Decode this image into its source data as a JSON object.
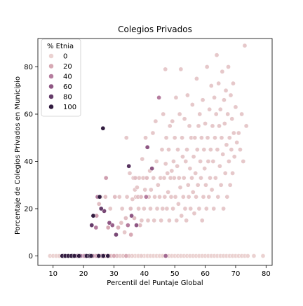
{
  "chart_data": {
    "type": "scatter",
    "title": "Colegios Privados",
    "xlabel": "Percentil del Puntaje Global",
    "ylabel": "Porcentaje de Colegios Privados en Municipio",
    "xlim": [
      5,
      82
    ],
    "ylim": [
      -4,
      92
    ],
    "xticks": [
      10,
      20,
      30,
      40,
      50,
      60,
      70,
      80
    ],
    "yticks": [
      0,
      20,
      40,
      60,
      80
    ],
    "grid": false,
    "legend": {
      "title": "% Etnia",
      "placement": "top-left",
      "entries": [
        {
          "label": "0",
          "value": 0
        },
        {
          "label": "20",
          "value": 20
        },
        {
          "label": "40",
          "value": 40
        },
        {
          "label": "60",
          "value": 60
        },
        {
          "label": "80",
          "value": 80
        },
        {
          "label": "100",
          "value": 100
        }
      ]
    },
    "hue_colors": [
      "#ebd2d1",
      "#d7a9b4",
      "#b57c9e",
      "#8e5683",
      "#643b69",
      "#311b3f"
    ],
    "points": [
      [
        9,
        0,
        0
      ],
      [
        10,
        0,
        0
      ],
      [
        11,
        0,
        0
      ],
      [
        12,
        0,
        2
      ],
      [
        13,
        0,
        100
      ],
      [
        13.5,
        0,
        90
      ],
      [
        14,
        0,
        100
      ],
      [
        15,
        0,
        100
      ],
      [
        16,
        0,
        100
      ],
      [
        16.5,
        0,
        95
      ],
      [
        17,
        0,
        100
      ],
      [
        18,
        0,
        60
      ],
      [
        18.5,
        0,
        100
      ],
      [
        19,
        0,
        55
      ],
      [
        20,
        0,
        30
      ],
      [
        20.5,
        0,
        40
      ],
      [
        21,
        0,
        100
      ],
      [
        21.5,
        0,
        30
      ],
      [
        22,
        0,
        100
      ],
      [
        22.5,
        0,
        100
      ],
      [
        23,
        0,
        35
      ],
      [
        24,
        0,
        25
      ],
      [
        24.5,
        0,
        30
      ],
      [
        25,
        0,
        100
      ],
      [
        26,
        0,
        40
      ],
      [
        26.5,
        0,
        100
      ],
      [
        27,
        0,
        25
      ],
      [
        28,
        0,
        100
      ],
      [
        28.5,
        0,
        20
      ],
      [
        29,
        0,
        15
      ],
      [
        30,
        0,
        20
      ],
      [
        31,
        0,
        10
      ],
      [
        32,
        0,
        5
      ],
      [
        33,
        0,
        5
      ],
      [
        34,
        0,
        20
      ],
      [
        35,
        0,
        5
      ],
      [
        36,
        0,
        2
      ],
      [
        37,
        0,
        0
      ],
      [
        38,
        0,
        0
      ],
      [
        39,
        0,
        2
      ],
      [
        40,
        0,
        0
      ],
      [
        41,
        0,
        0
      ],
      [
        42,
        0,
        0
      ],
      [
        43,
        0,
        0
      ],
      [
        44,
        0,
        0
      ],
      [
        45,
        0,
        0
      ],
      [
        46,
        0,
        0
      ],
      [
        47,
        0,
        50
      ],
      [
        48,
        0,
        0
      ],
      [
        49,
        0,
        0
      ],
      [
        50,
        0,
        0
      ],
      [
        51,
        0,
        0
      ],
      [
        52,
        0,
        0
      ],
      [
        53,
        0,
        0
      ],
      [
        54,
        0,
        0
      ],
      [
        55,
        0,
        0
      ],
      [
        56,
        0,
        0
      ],
      [
        57,
        0,
        0
      ],
      [
        58,
        0,
        0
      ],
      [
        59,
        0,
        0
      ],
      [
        60,
        0,
        0
      ],
      [
        61,
        0,
        0
      ],
      [
        62,
        0,
        0
      ],
      [
        63,
        0,
        0
      ],
      [
        64,
        0,
        0
      ],
      [
        65,
        0,
        0
      ],
      [
        66,
        0,
        0
      ],
      [
        67,
        0,
        0
      ],
      [
        68,
        0,
        0
      ],
      [
        69,
        0,
        0
      ],
      [
        70,
        0,
        0
      ],
      [
        71,
        0,
        0
      ],
      [
        72,
        0,
        0
      ],
      [
        73,
        0,
        0
      ],
      [
        74,
        0,
        0
      ],
      [
        76,
        0,
        0
      ],
      [
        79,
        0,
        0
      ],
      [
        24.6,
        25,
        40
      ],
      [
        25.3,
        25,
        100
      ],
      [
        25.8,
        20,
        80
      ],
      [
        26.4,
        54,
        100
      ],
      [
        23.2,
        17,
        100
      ],
      [
        22.7,
        13,
        80
      ],
      [
        24.1,
        12,
        40
      ],
      [
        26.8,
        19,
        70
      ],
      [
        28.5,
        14,
        60
      ],
      [
        29.5,
        13,
        55
      ],
      [
        30.7,
        9,
        70
      ],
      [
        24.3,
        17,
        25
      ],
      [
        25.1,
        22,
        10
      ],
      [
        25.6,
        25,
        5
      ],
      [
        27.2,
        25,
        10
      ],
      [
        27.4,
        33,
        25
      ],
      [
        28.1,
        12,
        20
      ],
      [
        28.8,
        20,
        5
      ],
      [
        30.3,
        25,
        10
      ],
      [
        31.4,
        12,
        15
      ],
      [
        31.8,
        25,
        5
      ],
      [
        32.4,
        14,
        8
      ],
      [
        32.7,
        20,
        5
      ],
      [
        33.5,
        10,
        5
      ],
      [
        33.9,
        16,
        10
      ],
      [
        34.1,
        50,
        5
      ],
      [
        34.3,
        25,
        5
      ],
      [
        34.6,
        13,
        40
      ],
      [
        34.9,
        38,
        85
      ],
      [
        35.2,
        35,
        5
      ],
      [
        35.5,
        20,
        10
      ],
      [
        35.6,
        9,
        20
      ],
      [
        35.8,
        17,
        60
      ],
      [
        36.1,
        24,
        5
      ],
      [
        36.4,
        33,
        5
      ],
      [
        36.7,
        16,
        10
      ],
      [
        36.9,
        28,
        5
      ],
      [
        37.0,
        33,
        10
      ],
      [
        37.2,
        25,
        5
      ],
      [
        37.4,
        13,
        60
      ],
      [
        37.6,
        29,
        5
      ],
      [
        37.9,
        25,
        10
      ],
      [
        38.1,
        20,
        5
      ],
      [
        38.3,
        33,
        5
      ],
      [
        38.6,
        13,
        10
      ],
      [
        38.9,
        25,
        10
      ],
      [
        39.1,
        15,
        5
      ],
      [
        39.3,
        41,
        5
      ],
      [
        39.6,
        33,
        5
      ],
      [
        39.9,
        20,
        5
      ],
      [
        40.2,
        28,
        5
      ],
      [
        40.4,
        50,
        5
      ],
      [
        40.6,
        25,
        40
      ],
      [
        40.8,
        33,
        10
      ],
      [
        41.0,
        46,
        60
      ],
      [
        41.2,
        15,
        5
      ],
      [
        41.5,
        25,
        5
      ],
      [
        41.8,
        36,
        5
      ],
      [
        42.0,
        20,
        5
      ],
      [
        42.2,
        28,
        5
      ],
      [
        42.5,
        37,
        60
      ],
      [
        42.8,
        52,
        5
      ],
      [
        43.0,
        33,
        5
      ],
      [
        43.2,
        15,
        5
      ],
      [
        43.4,
        25,
        5
      ],
      [
        43.7,
        57,
        5
      ],
      [
        44.0,
        40,
        5
      ],
      [
        44.2,
        20,
        5
      ],
      [
        44.5,
        30,
        5
      ],
      [
        44.8,
        67,
        40
      ],
      [
        45.0,
        25,
        5
      ],
      [
        45.3,
        33,
        5
      ],
      [
        45.5,
        15,
        5
      ],
      [
        45.8,
        45,
        5
      ],
      [
        46.0,
        20,
        5
      ],
      [
        46.2,
        60,
        5
      ],
      [
        46.5,
        33,
        5
      ],
      [
        46.7,
        25,
        5
      ],
      [
        46.9,
        79,
        5
      ],
      [
        47.0,
        39,
        5
      ],
      [
        47.2,
        50,
        5
      ],
      [
        47.4,
        20,
        5
      ],
      [
        47.6,
        35,
        5
      ],
      [
        47.8,
        27,
        5
      ],
      [
        48.0,
        45,
        5
      ],
      [
        48.2,
        15,
        5
      ],
      [
        48.4,
        55,
        5
      ],
      [
        48.6,
        33,
        5
      ],
      [
        48.8,
        25,
        5
      ],
      [
        49.0,
        36,
        5
      ],
      [
        49.2,
        57,
        5
      ],
      [
        49.4,
        20,
        5
      ],
      [
        49.6,
        40,
        5
      ],
      [
        49.8,
        33,
        5
      ],
      [
        50.0,
        50,
        5
      ],
      [
        50.2,
        25,
        5
      ],
      [
        50.4,
        67,
        5
      ],
      [
        50.6,
        15,
        5
      ],
      [
        50.8,
        38,
        5
      ],
      [
        51.0,
        45,
        5
      ],
      [
        51.2,
        22,
        5
      ],
      [
        51.4,
        33,
        5
      ],
      [
        51.6,
        60,
        5
      ],
      [
        51.8,
        29,
        5
      ],
      [
        52.0,
        79,
        5
      ],
      [
        52.2,
        17,
        5
      ],
      [
        52.4,
        50,
        5
      ],
      [
        52.6,
        42,
        5
      ],
      [
        52.8,
        25,
        5
      ],
      [
        53.0,
        33,
        5
      ],
      [
        53.2,
        58,
        5
      ],
      [
        53.4,
        20,
        5
      ],
      [
        53.6,
        40,
        5
      ],
      [
        53.8,
        15,
        5
      ],
      [
        54.0,
        45,
        5
      ],
      [
        54.2,
        68,
        5
      ],
      [
        54.4,
        30,
        5
      ],
      [
        54.6,
        25,
        5
      ],
      [
        54.8,
        55,
        5
      ],
      [
        55.0,
        37,
        5
      ],
      [
        55.2,
        20,
        5
      ],
      [
        55.4,
        50,
        5
      ],
      [
        55.6,
        33,
        5
      ],
      [
        55.8,
        64,
        5
      ],
      [
        56.0,
        27,
        5
      ],
      [
        56.2,
        42,
        5
      ],
      [
        56.4,
        18,
        5
      ],
      [
        56.6,
        50,
        5
      ],
      [
        56.8,
        35,
        5
      ],
      [
        57.0,
        25,
        5
      ],
      [
        57.2,
        75,
        5
      ],
      [
        57.4,
        45,
        5
      ],
      [
        57.6,
        30,
        5
      ],
      [
        57.8,
        55,
        5
      ],
      [
        58.0,
        20,
        5
      ],
      [
        58.2,
        60,
        5
      ],
      [
        58.4,
        40,
        5
      ],
      [
        58.6,
        33,
        5
      ],
      [
        58.8,
        50,
        5
      ],
      [
        59.0,
        15,
        5
      ],
      [
        59.2,
        66,
        5
      ],
      [
        59.4,
        25,
        5
      ],
      [
        59.6,
        45,
        5
      ],
      [
        59.8,
        37,
        5
      ],
      [
        60.0,
        56,
        5
      ],
      [
        60.2,
        30,
        5
      ],
      [
        60.4,
        20,
        5
      ],
      [
        60.6,
        80,
        5
      ],
      [
        60.8,
        50,
        5
      ],
      [
        61.0,
        40,
        5
      ],
      [
        61.2,
        25,
        5
      ],
      [
        61.4,
        62,
        5
      ],
      [
        61.6,
        33,
        5
      ],
      [
        61.8,
        45,
        5
      ],
      [
        62.0,
        72,
        5
      ],
      [
        62.2,
        28,
        5
      ],
      [
        62.4,
        55,
        5
      ],
      [
        62.6,
        40,
        5
      ],
      [
        62.8,
        20,
        5
      ],
      [
        63.0,
        67,
        5
      ],
      [
        63.2,
        50,
        5
      ],
      [
        63.4,
        33,
        5
      ],
      [
        63.6,
        60,
        5
      ],
      [
        63.8,
        85,
        5
      ],
      [
        64.0,
        45,
        5
      ],
      [
        64.2,
        25,
        5
      ],
      [
        64.4,
        73,
        5
      ],
      [
        64.6,
        55,
        5
      ],
      [
        64.8,
        38,
        5
      ],
      [
        65.0,
        62,
        5
      ],
      [
        65.2,
        30,
        5
      ],
      [
        65.4,
        50,
        5
      ],
      [
        65.6,
        78,
        5
      ],
      [
        65.8,
        43,
        5
      ],
      [
        66.0,
        20,
        5
      ],
      [
        66.2,
        66,
        5
      ],
      [
        66.4,
        56,
        5
      ],
      [
        66.6,
        35,
        5
      ],
      [
        66.8,
        70,
        5
      ],
      [
        67.0,
        47,
        5
      ],
      [
        67.2,
        25,
        5
      ],
      [
        67.4,
        60,
        5
      ],
      [
        67.6,
        80,
        5
      ],
      [
        67.8,
        40,
        5
      ],
      [
        68.0,
        50,
        5
      ],
      [
        68.2,
        30,
        5
      ],
      [
        68.4,
        68,
        5
      ],
      [
        68.6,
        45,
        5
      ],
      [
        68.8,
        58,
        5
      ],
      [
        69.0,
        35,
        5
      ],
      [
        69.2,
        73,
        5
      ],
      [
        69.4,
        52,
        5
      ],
      [
        69.6,
        42,
        5
      ],
      [
        70.0,
        63,
        5
      ],
      [
        70.4,
        48,
        5
      ],
      [
        71.0,
        52,
        5
      ],
      [
        71.5,
        45,
        5
      ],
      [
        72.0,
        60,
        5
      ],
      [
        72.5,
        40,
        5
      ],
      [
        73.0,
        89,
        5
      ],
      [
        73.5,
        55,
        5
      ]
    ]
  }
}
